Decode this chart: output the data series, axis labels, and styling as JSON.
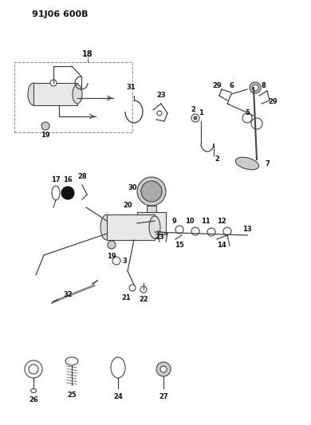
{
  "title": "91J06 600B",
  "bg": "#ffffff",
  "fw": 3.9,
  "fh": 5.33,
  "dpi": 100,
  "gray": "#444444",
  "lgray": "#888888",
  "dark": "#111111"
}
